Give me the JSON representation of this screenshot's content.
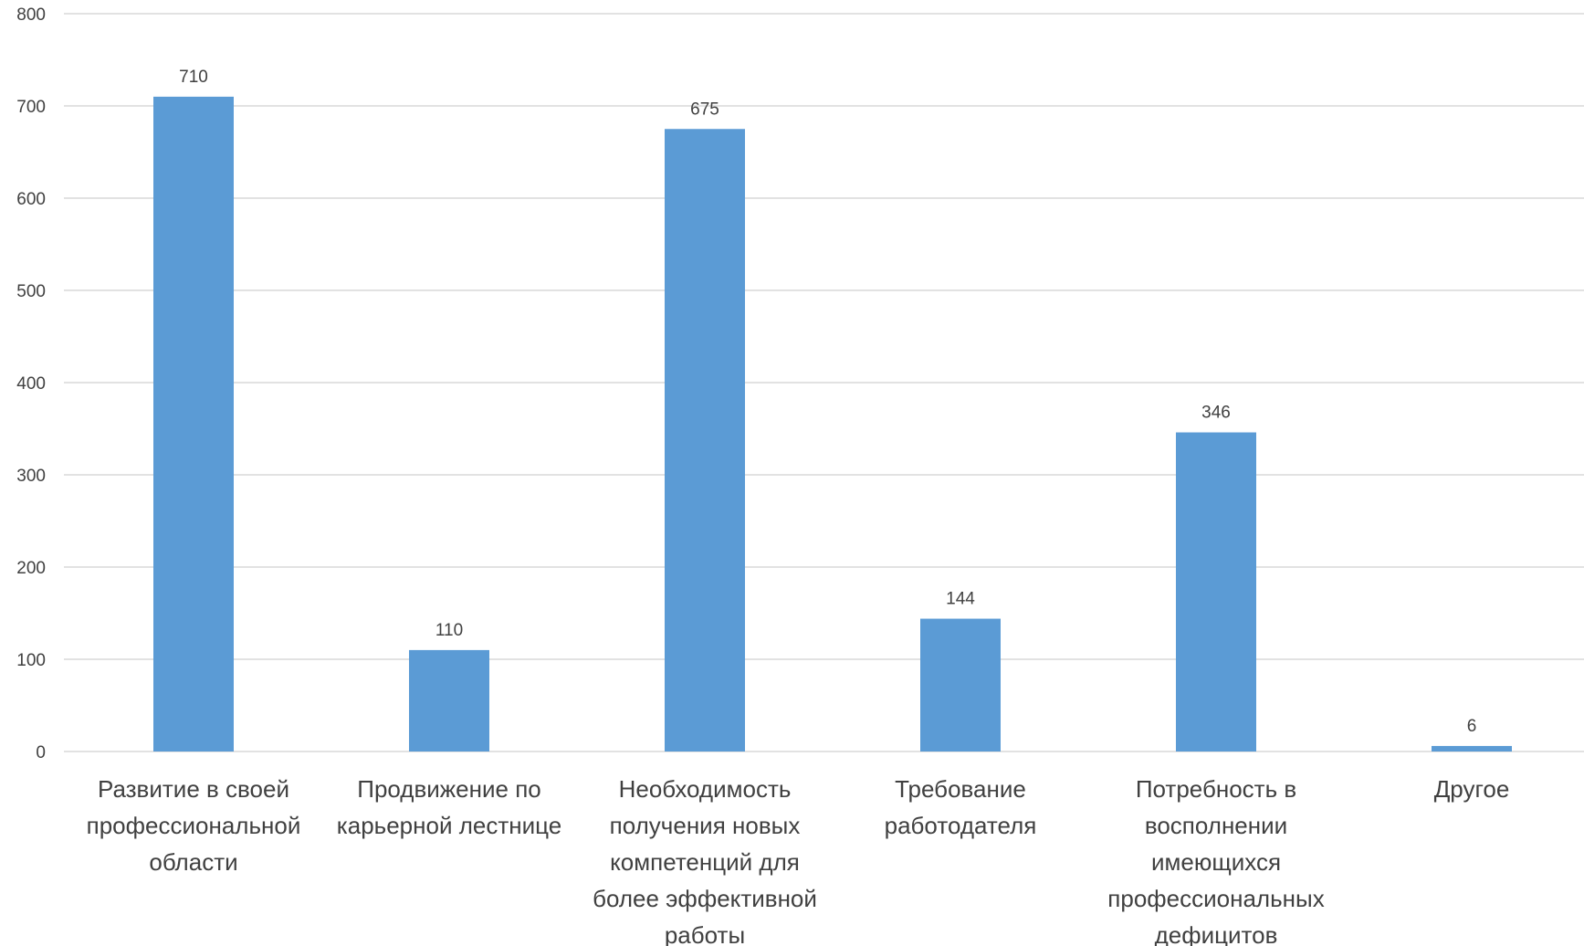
{
  "chart_data": {
    "type": "bar",
    "title": "",
    "xlabel": "",
    "ylabel": "",
    "categories": [
      [
        "Развитие в своей",
        "профессиональной",
        "области"
      ],
      [
        "Продвижение по",
        "карьерной лестнице"
      ],
      [
        "Необходимость",
        "получения новых",
        "компетенций для",
        "более эффективной",
        "работы"
      ],
      [
        "Требование",
        "работодателя"
      ],
      [
        "Потребность в",
        "восполнении",
        "имеющихся",
        "профессиональных",
        "дефицитов"
      ],
      [
        "Другое"
      ]
    ],
    "series": [
      {
        "values": [
          710,
          110,
          675,
          144,
          346,
          6
        ],
        "color": "#5b9bd5"
      }
    ],
    "ylim": [
      0,
      800
    ],
    "yticks": [
      0,
      100,
      200,
      300,
      400,
      500,
      600,
      700,
      800
    ],
    "grid": true,
    "legend": "none",
    "data_labels": true
  }
}
